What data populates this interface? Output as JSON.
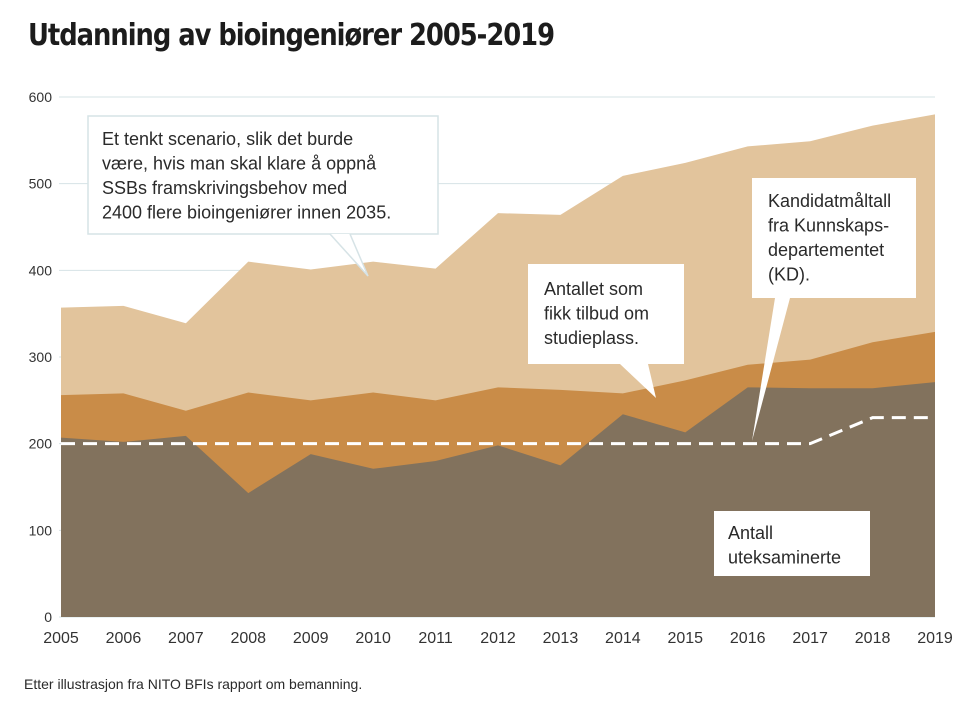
{
  "chart_data": {
    "type": "area",
    "title": "Utdanning av bioingeniører 2005-2019",
    "xlabel": "",
    "ylabel": "",
    "x": [
      2005,
      2006,
      2007,
      2008,
      2009,
      2010,
      2011,
      2012,
      2013,
      2014,
      2015,
      2016,
      2017,
      2018,
      2019
    ],
    "x_tick_labels": [
      "2005",
      "2006",
      "2007",
      "2008",
      "2009",
      "2010",
      "2011",
      "2012",
      "2013",
      "2014",
      "2015",
      "2016",
      "2017",
      "2018",
      "2019"
    ],
    "ylim": [
      0,
      600
    ],
    "y_ticks": [
      0,
      100,
      200,
      300,
      400,
      500,
      600
    ],
    "y_tick_labels": [
      "0",
      "100",
      "200",
      "300",
      "400",
      "500",
      "600"
    ],
    "grid": true,
    "stacking": "overlapping (each series drawn from 0, larger behind)",
    "series": [
      {
        "name": "Et tenkt scenario",
        "kind": "area",
        "color": "#e2c49c",
        "values": [
          357,
          359,
          339,
          410,
          401,
          410,
          402,
          466,
          464,
          509,
          524,
          543,
          549,
          567,
          580
        ]
      },
      {
        "name": "Antallet som fikk tilbud om studieplass",
        "kind": "area",
        "color": "#c98c48",
        "values": [
          256,
          258,
          238,
          259,
          250,
          259,
          250,
          265,
          262,
          258,
          273,
          291,
          297,
          317,
          329
        ]
      },
      {
        "name": "Antall uteksaminerte",
        "kind": "area",
        "color": "#82725d",
        "values": [
          207,
          202,
          209,
          143,
          188,
          171,
          180,
          198,
          175,
          234,
          213,
          265,
          264,
          264,
          271
        ]
      },
      {
        "name": "Kandidatmåltall fra Kunnskapsdepartementet (KD)",
        "kind": "dashed-line",
        "color": "#ffffff",
        "values": [
          200,
          200,
          200,
          200,
          200,
          200,
          200,
          200,
          200,
          200,
          200,
          200,
          200,
          230,
          230
        ]
      }
    ],
    "annotations": [
      {
        "text": [
          "Et tenkt scenario, slik det burde",
          "være, hvis man skal klare å oppnå",
          "SSBs framskrivingsbehov med",
          "2400 flere bioingeniører innen 2035."
        ],
        "points_to": {
          "x": 2010,
          "series": "Et tenkt scenario"
        }
      },
      {
        "text": [
          "Antallet som",
          "fikk tilbud om",
          "studieplass."
        ],
        "points_to": {
          "x": 2014.6,
          "series": "Antallet som fikk tilbud om studieplass"
        }
      },
      {
        "text": [
          "Kandidatmåltall",
          "fra Kunnskaps-",
          "departementet",
          "(KD)."
        ],
        "points_to": {
          "x": 2016,
          "series": "Kandidatmåltall fra Kunnskapsdepartementet (KD)"
        }
      },
      {
        "text": [
          "Antall",
          "uteksaminerte"
        ],
        "points_to": null
      }
    ]
  },
  "footer": "Etter illustrasjon fra  NITO BFIs rapport om bemanning."
}
